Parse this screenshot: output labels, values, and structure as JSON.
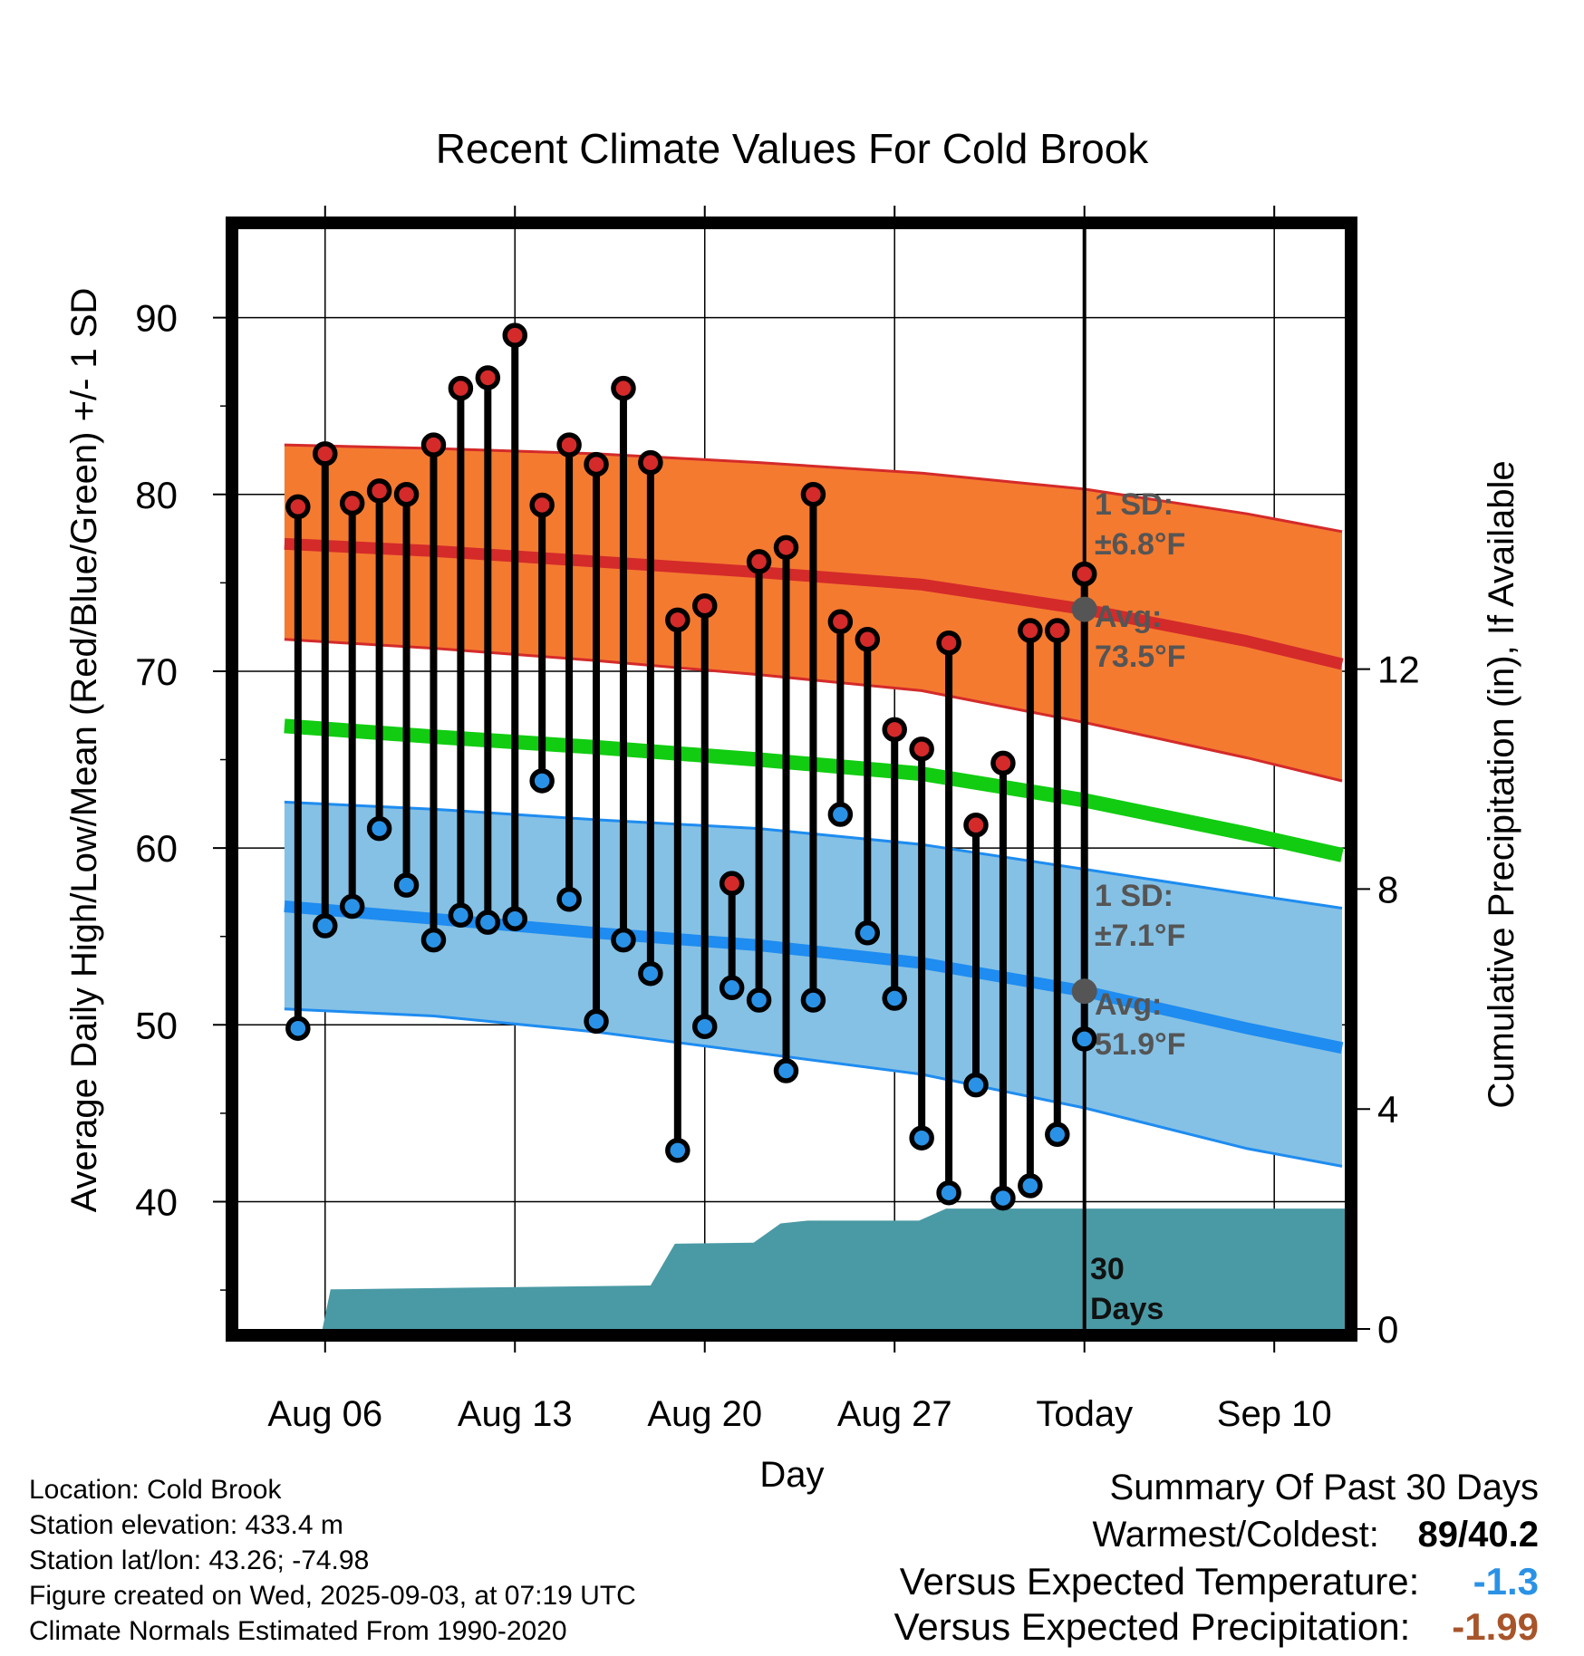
{
  "chart_data": {
    "type": "line",
    "title": "Recent Climate Values For Cold Brook",
    "xlabel": "Day",
    "ylabel_left": "Average Daily High/Low/Mean (Red/Blue/Green) +/- 1 SD",
    "ylabel_right": "Cumulative Precipitation (in), If Available",
    "y_left_ticks": [
      "40",
      "50",
      "60",
      "70",
      "80",
      "90"
    ],
    "y_right_ticks": [
      "0",
      "4",
      "8",
      "12"
    ],
    "x_tick_labels": [
      "Aug 06",
      "Aug 13",
      "Aug 20",
      "Aug 27",
      "Today",
      "Sep 10"
    ],
    "x_tick_days": [
      6,
      13,
      20,
      27,
      34,
      41
    ],
    "xlim_days": [
      2.8,
      43.6
    ],
    "ylim_left": [
      32.8,
      95
    ],
    "ylim_right": [
      0,
      20
    ],
    "grid": true,
    "today_day": 34,
    "observed_days": [
      5,
      6,
      7,
      8,
      9,
      10,
      11,
      12,
      13,
      14,
      15,
      16,
      17,
      18,
      19,
      20,
      21,
      22,
      23,
      24,
      25,
      26,
      27,
      28,
      29,
      30,
      31,
      32,
      33,
      34
    ],
    "observed_high": [
      79.3,
      82.3,
      79.5,
      80.2,
      80.0,
      82.8,
      86.0,
      86.6,
      89.0,
      79.4,
      82.8,
      81.7,
      86.0,
      81.8,
      72.9,
      73.7,
      58.0,
      76.2,
      77.0,
      80.0,
      72.8,
      71.8,
      66.7,
      65.6,
      71.6,
      61.3,
      64.8,
      72.3,
      72.3,
      75.5
    ],
    "observed_low": [
      49.8,
      55.6,
      56.7,
      61.1,
      57.9,
      54.8,
      56.2,
      55.8,
      56.0,
      63.8,
      57.1,
      50.2,
      54.8,
      52.9,
      42.9,
      49.9,
      52.1,
      51.4,
      47.4,
      51.4,
      61.9,
      55.2,
      51.5,
      43.6,
      40.5,
      46.6,
      40.2,
      40.9,
      43.8,
      49.2
    ],
    "normal_days": [
      4.5,
      10,
      16,
      22,
      28,
      34,
      40,
      43.5
    ],
    "normal_high_mean": [
      77.2,
      76.8,
      76.2,
      75.6,
      74.9,
      73.5,
      71.7,
      70.4
    ],
    "normal_high_upper": [
      82.8,
      82.6,
      82.3,
      81.8,
      81.2,
      80.3,
      78.9,
      77.9
    ],
    "normal_high_lower": [
      71.8,
      71.3,
      70.6,
      69.8,
      68.9,
      67.1,
      65.1,
      63.8
    ],
    "normal_low_mean": [
      56.7,
      56.0,
      55.2,
      54.5,
      53.5,
      51.9,
      49.8,
      48.7
    ],
    "normal_low_upper": [
      62.6,
      62.2,
      61.6,
      61.1,
      60.2,
      58.8,
      57.4,
      56.6
    ],
    "normal_low_lower": [
      50.9,
      50.5,
      49.6,
      48.4,
      47.2,
      45.3,
      43.0,
      42.0
    ],
    "normal_mean": [
      66.9,
      66.3,
      65.7,
      65.0,
      64.2,
      62.7,
      60.8,
      59.6
    ],
    "precip_days": [
      4.5,
      5.9,
      6.2,
      18.0,
      18.9,
      21.8,
      22.8,
      23.8,
      27.9,
      28.9,
      43.6
    ],
    "precip_cum": [
      0,
      0,
      0.72,
      0.79,
      1.55,
      1.57,
      1.92,
      1.97,
      1.97,
      2.19,
      2.19
    ],
    "annotations": {
      "high_sd": "1 SD:",
      "high_sd_value": "±6.8°F",
      "high_avg": "Avg:",
      "high_avg_value": "73.5°F",
      "low_sd": "1 SD:",
      "low_sd_value": "±7.1°F",
      "low_avg": "Avg:",
      "low_avg_value": "51.9°F",
      "period_count": "30",
      "period_unit": "Days"
    },
    "colors": {
      "high_band": "#f47a30",
      "high_band_edge": "#d42a2a",
      "high_mean": "#d42a2a",
      "low_band": "#85c1e5",
      "low_band_edge": "#1e8cf0",
      "low_mean": "#1e8cf0",
      "mean": "#11cc11",
      "precip": "#4a9aa5",
      "high_marker": "#d42a2a",
      "low_marker": "#2a92e6",
      "avg_marker": "#555555",
      "annotation_text": "#555555"
    }
  },
  "footer": {
    "location": "Location: Cold Brook",
    "elevation": "Station elevation: 433.4 m",
    "latlon": "Station lat/lon: 43.26; -74.98",
    "created": "Figure created on Wed, 2025-09-03, at 07:19 UTC",
    "normals": "Climate Normals Estimated From 1990-2020"
  },
  "summary": {
    "title": "Summary Of Past 30 Days",
    "warm_cold_label": "Warmest/Coldest:",
    "warm_cold_value": "89/40.2",
    "temp_label": "Versus Expected Temperature:",
    "temp_value": "-1.3",
    "temp_color": "#2a92e6",
    "precip_label": "Versus Expected Precipitation:",
    "precip_value": "-1.99",
    "precip_color": "#a8542a"
  }
}
